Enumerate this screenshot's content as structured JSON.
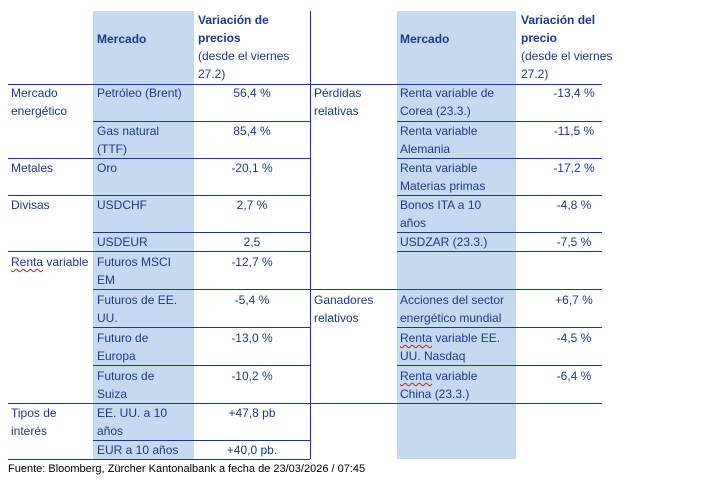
{
  "left_table": {
    "header": {
      "market": "Mercado",
      "change_title": "Variación de precios",
      "change_note": "(desde el viernes 27.2)"
    },
    "rows": [
      {
        "category": "Mercado energético",
        "market": "Petróleo (Brent)",
        "change": "56,4 %"
      },
      {
        "category": "",
        "market": "Gas natural (TTF)",
        "change": "85,4 %"
      },
      {
        "category": "Metales",
        "market": "Oro",
        "change": "-20,1 %"
      },
      {
        "category": "Divisas",
        "market": "USDCHF",
        "change": "2,7 %"
      },
      {
        "category": "",
        "market": "USDEUR",
        "change": "2,5"
      },
      {
        "category": "Renta variable",
        "market": "Futuros MSCI EM",
        "change": "-12,7 %"
      },
      {
        "category": "",
        "market": "Futuros de EE. UU.",
        "change": "-5,4 %"
      },
      {
        "category": "",
        "market": "Futuro de Europa",
        "change": "-13,0 %"
      },
      {
        "category": "",
        "market": "Futuros de Suiza",
        "change": "-10,2 %"
      },
      {
        "category": "Tipos de interés",
        "market": "EE. UU. a 10 años",
        "change": "+47,8 pb"
      },
      {
        "category": "",
        "market": "EUR a 10 años",
        "change": "+40,0 pb."
      }
    ]
  },
  "right_table": {
    "header": {
      "market": "Mercado",
      "change_title": "Variación del precio",
      "change_note": "(desde el viernes 27.2)"
    },
    "groups": {
      "losers": "Pérdidas relativas",
      "winners": "Ganadores relativos"
    },
    "rows": [
      {
        "market_a": "Renta variable de",
        "market_b": "Corea (23.3.)",
        "change": "-13,4 %"
      },
      {
        "market_a": "Renta variable",
        "market_b": "Alemania",
        "change": "-11,5 %"
      },
      {
        "market_a": "Renta variable",
        "market_b": "Materias primas",
        "change": "-17,2 %"
      },
      {
        "market_a": "Bonos ITA a 10",
        "market_b": "años",
        "change": "-4,8 %"
      },
      {
        "market_a": "USDZAR (23.3.)",
        "market_b": "",
        "change": "-7,5 %"
      },
      {
        "market_a": "",
        "market_b": "",
        "change": ""
      },
      {
        "market_a": "Acciones del sector",
        "market_b": "energético mundial",
        "change": "+6,7 %"
      },
      {
        "market_a_wavy": "Renta",
        "market_a_rest": " variable EE.",
        "market_b": "UU. Nasdaq",
        "change": "-4,5 %"
      },
      {
        "market_a_wavy": "Renta",
        "market_a_rest": " variable",
        "market_b": "China (23.3.)",
        "change": "-6,4 %"
      }
    ]
  },
  "source": "Fuente: Bloomberg, Zürcher Kantonalbank a fecha de 23/03/2026 / 07:45"
}
